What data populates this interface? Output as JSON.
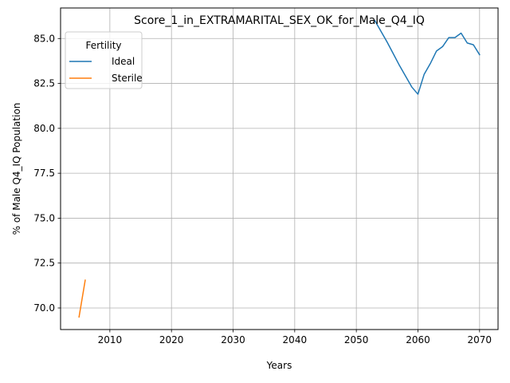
{
  "chart_data": {
    "type": "line",
    "title": "Score_1_in_EXTRAMARITAL_SEX_OK_for_Male_Q4_IQ",
    "xlabel": "Years",
    "ylabel": "% of Male Q4_IQ Population",
    "xlim": [
      2002,
      2073
    ],
    "ylim": [
      68.8,
      86.7
    ],
    "xticks": [
      2010,
      2020,
      2030,
      2040,
      2050,
      2060,
      2070
    ],
    "yticks": [
      70.0,
      72.5,
      75.0,
      77.5,
      80.0,
      82.5,
      85.0,
      87.5
    ],
    "ytick_labels": [
      "70.0",
      "72.5",
      "75.0",
      "77.5",
      "80.0",
      "82.5",
      "85.0",
      "87.5"
    ],
    "grid": true,
    "legend": {
      "title": "Fertility",
      "placement": "top-left"
    },
    "series": [
      {
        "name": "Ideal",
        "color": "#1f77b4",
        "x": [
          2053,
          2054,
          2055,
          2056,
          2057,
          2058,
          2059,
          2060,
          2061,
          2062,
          2063,
          2064,
          2065,
          2066,
          2067,
          2068,
          2069,
          2070
        ],
        "y": [
          86.0,
          85.4,
          84.8,
          84.15,
          83.5,
          82.9,
          82.3,
          81.9,
          83.0,
          83.6,
          84.3,
          84.55,
          85.05,
          85.05,
          85.3,
          84.75,
          84.65,
          84.1
        ]
      },
      {
        "name": "Sterile",
        "color": "#ff7f0e",
        "x": [
          2005,
          2006
        ],
        "y": [
          69.5,
          71.55
        ]
      }
    ]
  }
}
